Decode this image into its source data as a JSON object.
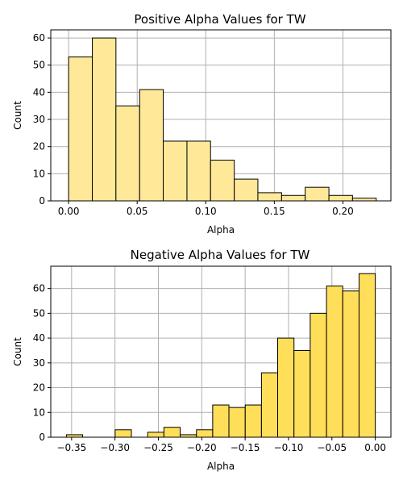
{
  "chart_data": [
    {
      "type": "bar",
      "title": "Positive Alpha Values for TW",
      "xlabel": "Alpha",
      "ylabel": "Count",
      "bar_color": "#ffe999",
      "grid": true,
      "xlim": [
        -0.013,
        0.235
      ],
      "ylim": [
        0,
        63
      ],
      "xticks": [
        {
          "value": 0.0,
          "label": "0.00"
        },
        {
          "value": 0.05,
          "label": "0.05"
        },
        {
          "value": 0.1,
          "label": "0.10"
        },
        {
          "value": 0.15,
          "label": "0.15"
        },
        {
          "value": 0.2,
          "label": "0.20"
        }
      ],
      "yticks": [
        {
          "value": 0,
          "label": "0"
        },
        {
          "value": 10,
          "label": "10"
        },
        {
          "value": 20,
          "label": "20"
        },
        {
          "value": 30,
          "label": "30"
        },
        {
          "value": 40,
          "label": "40"
        },
        {
          "value": 50,
          "label": "50"
        },
        {
          "value": 60,
          "label": "60"
        }
      ],
      "bins": [
        {
          "x0": 0.0,
          "x1": 0.0173,
          "count": 53
        },
        {
          "x0": 0.0173,
          "x1": 0.0345,
          "count": 60
        },
        {
          "x0": 0.0345,
          "x1": 0.0518,
          "count": 35
        },
        {
          "x0": 0.0518,
          "x1": 0.069,
          "count": 41
        },
        {
          "x0": 0.069,
          "x1": 0.0863,
          "count": 22
        },
        {
          "x0": 0.0863,
          "x1": 0.1035,
          "count": 22
        },
        {
          "x0": 0.1035,
          "x1": 0.1208,
          "count": 15
        },
        {
          "x0": 0.1208,
          "x1": 0.138,
          "count": 8
        },
        {
          "x0": 0.138,
          "x1": 0.1553,
          "count": 3
        },
        {
          "x0": 0.1553,
          "x1": 0.1725,
          "count": 2
        },
        {
          "x0": 0.1725,
          "x1": 0.1898,
          "count": 5
        },
        {
          "x0": 0.1898,
          "x1": 0.207,
          "count": 2
        },
        {
          "x0": 0.207,
          "x1": 0.2243,
          "count": 1
        }
      ]
    },
    {
      "type": "bar",
      "title": "Negative Alpha Values for TW",
      "xlabel": "Alpha",
      "ylabel": "Count",
      "bar_color": "#ffde59",
      "grid": true,
      "xlim": [
        -0.374,
        0.018
      ],
      "ylim": [
        0,
        69
      ],
      "xticks": [
        {
          "value": -0.35,
          "label": "−0.35"
        },
        {
          "value": -0.3,
          "label": "−0.30"
        },
        {
          "value": -0.25,
          "label": "−0.25"
        },
        {
          "value": -0.2,
          "label": "−0.20"
        },
        {
          "value": -0.15,
          "label": "−0.15"
        },
        {
          "value": -0.1,
          "label": "−0.10"
        },
        {
          "value": -0.05,
          "label": "−0.05"
        },
        {
          "value": 0.0,
          "label": "0.00"
        }
      ],
      "yticks": [
        {
          "value": 0,
          "label": "0"
        },
        {
          "value": 10,
          "label": "10"
        },
        {
          "value": 20,
          "label": "20"
        },
        {
          "value": 30,
          "label": "30"
        },
        {
          "value": 40,
          "label": "40"
        },
        {
          "value": 50,
          "label": "50"
        },
        {
          "value": 60,
          "label": "60"
        }
      ],
      "bins": [
        {
          "x0": -0.356,
          "x1": -0.3373,
          "count": 1
        },
        {
          "x0": -0.3373,
          "x1": -0.3185,
          "count": 0
        },
        {
          "x0": -0.3185,
          "x1": -0.2998,
          "count": 0
        },
        {
          "x0": -0.2998,
          "x1": -0.2811,
          "count": 3
        },
        {
          "x0": -0.2811,
          "x1": -0.2623,
          "count": 0
        },
        {
          "x0": -0.2623,
          "x1": -0.2436,
          "count": 2
        },
        {
          "x0": -0.2436,
          "x1": -0.2249,
          "count": 4
        },
        {
          "x0": -0.2249,
          "x1": -0.2061,
          "count": 1
        },
        {
          "x0": -0.2061,
          "x1": -0.1874,
          "count": 3
        },
        {
          "x0": -0.1874,
          "x1": -0.1687,
          "count": 13
        },
        {
          "x0": -0.1687,
          "x1": -0.1499,
          "count": 12
        },
        {
          "x0": -0.1499,
          "x1": -0.1312,
          "count": 13
        },
        {
          "x0": -0.1312,
          "x1": -0.1125,
          "count": 26
        },
        {
          "x0": -0.1125,
          "x1": -0.0937,
          "count": 40
        },
        {
          "x0": -0.0937,
          "x1": -0.075,
          "count": 35
        },
        {
          "x0": -0.075,
          "x1": -0.0562,
          "count": 50
        },
        {
          "x0": -0.0562,
          "x1": -0.0375,
          "count": 61
        },
        {
          "x0": -0.0375,
          "x1": -0.0187,
          "count": 59
        },
        {
          "x0": -0.0187,
          "x1": 0.0,
          "count": 66
        }
      ]
    }
  ]
}
